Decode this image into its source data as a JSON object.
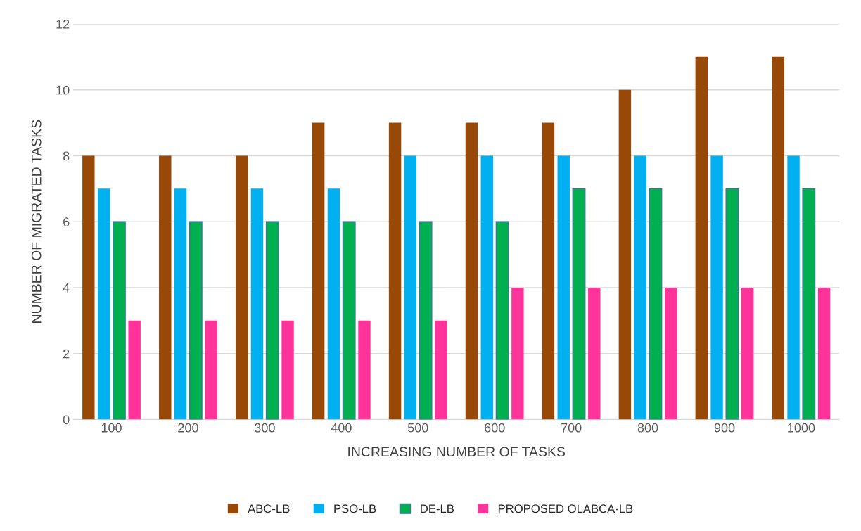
{
  "chart_data": {
    "type": "bar",
    "xlabel": "INCREASING NUMBER OF TASKS",
    "ylabel": "NUMBER OF MIGRATED TASKS",
    "categories": [
      "100",
      "200",
      "300",
      "400",
      "500",
      "600",
      "700",
      "800",
      "900",
      "1000"
    ],
    "series": [
      {
        "name": "ABC-LB",
        "color": "#984807",
        "values": [
          8,
          8,
          8,
          9,
          9,
          9,
          9,
          10,
          11,
          11
        ]
      },
      {
        "name": "PSO-LB",
        "color": "#00b0f0",
        "values": [
          7,
          7,
          7,
          7,
          8,
          8,
          8,
          8,
          8,
          8
        ]
      },
      {
        "name": "DE-LB",
        "color": "#00b050",
        "values": [
          6,
          6,
          6,
          6,
          6,
          6,
          7,
          7,
          7,
          7
        ]
      },
      {
        "name": "PROPOSED OLABCA-LB",
        "color": "#ff3399",
        "values": [
          3,
          3,
          3,
          3,
          3,
          4,
          4,
          4,
          4,
          4
        ]
      }
    ],
    "ylim": [
      0,
      12
    ],
    "yticks": [
      0,
      2,
      4,
      6,
      8,
      10,
      12
    ],
    "grid": "y",
    "legend": "bottom"
  }
}
